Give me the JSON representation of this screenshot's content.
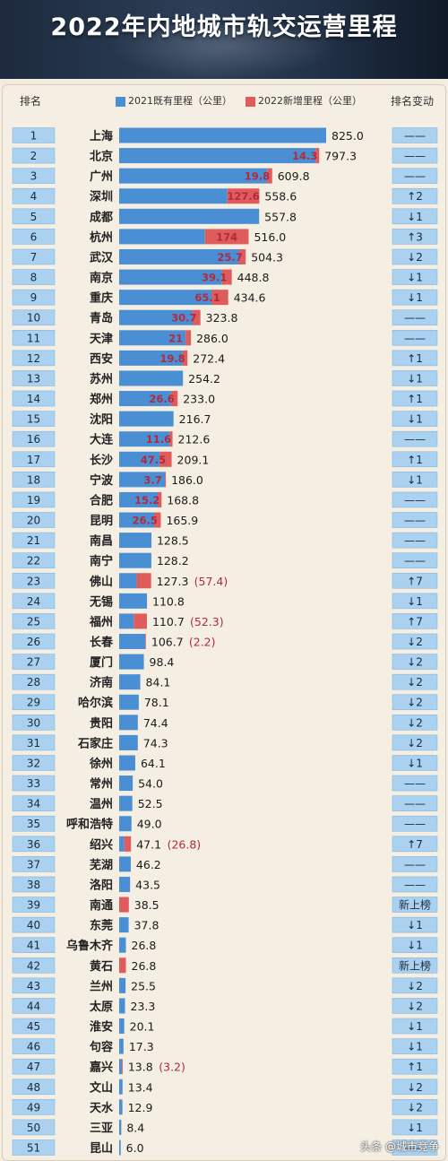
{
  "title": "2022年内地城市轨交运营里程",
  "headers": {
    "rank": "排名",
    "change": "排名变动"
  },
  "watermark": "头条 @城市竞争",
  "colors": {
    "base": "#4a8fd3",
    "added": "#e05b5b",
    "added_text": "#b42a3c",
    "badge": "#aad1ef",
    "accent": "#2f74c0"
  },
  "chart_data": {
    "type": "bar",
    "orientation": "horizontal",
    "stacked": true,
    "legend": [
      "2021既有里程（公里）",
      "2022新增里程（公里）"
    ],
    "legend_position": "top",
    "xlim": [
      0,
      825
    ],
    "rows": [
      {
        "rank": "1",
        "city": "上海",
        "base": 825.0,
        "added": 0,
        "added_label": "",
        "total": "825.0",
        "change": "——"
      },
      {
        "rank": "2",
        "city": "北京",
        "base": 783.0,
        "added": 14.3,
        "added_label": "14.3",
        "total": "797.3",
        "change": "——"
      },
      {
        "rank": "3",
        "city": "广州",
        "base": 590.0,
        "added": 19.8,
        "added_label": "19.8",
        "total": "609.8",
        "change": "——"
      },
      {
        "rank": "4",
        "city": "深圳",
        "base": 431.0,
        "added": 127.6,
        "added_label": "127.6",
        "total": "558.6",
        "change": "↑2"
      },
      {
        "rank": "5",
        "city": "成都",
        "base": 557.8,
        "added": 0,
        "added_label": "",
        "total": "557.8",
        "change": "↓1"
      },
      {
        "rank": "6",
        "city": "杭州",
        "base": 342.0,
        "added": 174,
        "added_label": "174",
        "total": "516.0",
        "change": "↑3"
      },
      {
        "rank": "7",
        "city": "武汉",
        "base": 478.6,
        "added": 25.7,
        "added_label": "25.7",
        "total": "504.3",
        "change": "↓2"
      },
      {
        "rank": "8",
        "city": "南京",
        "base": 409.7,
        "added": 39.1,
        "added_label": "39.1",
        "total": "448.8",
        "change": "↓1"
      },
      {
        "rank": "9",
        "city": "重庆",
        "base": 369.5,
        "added": 65.1,
        "added_label": "65.1",
        "total": "434.6",
        "change": "↓1"
      },
      {
        "rank": "10",
        "city": "青岛",
        "base": 293.1,
        "added": 30.7,
        "added_label": "30.7",
        "total": "323.8",
        "change": "——"
      },
      {
        "rank": "11",
        "city": "天津",
        "base": 265.0,
        "added": 21,
        "added_label": "21",
        "total": "286.0",
        "change": "——"
      },
      {
        "rank": "12",
        "city": "西安",
        "base": 252.6,
        "added": 19.8,
        "added_label": "19.8",
        "total": "272.4",
        "change": "↑1"
      },
      {
        "rank": "13",
        "city": "苏州",
        "base": 254.2,
        "added": 0,
        "added_label": "",
        "total": "254.2",
        "change": "↓1"
      },
      {
        "rank": "14",
        "city": "郑州",
        "base": 206.4,
        "added": 26.6,
        "added_label": "26.6",
        "total": "233.0",
        "change": "↑1"
      },
      {
        "rank": "15",
        "city": "沈阳",
        "base": 216.7,
        "added": 0,
        "added_label": "",
        "total": "216.7",
        "change": "↓1"
      },
      {
        "rank": "16",
        "city": "大连",
        "base": 201.0,
        "added": 11.6,
        "added_label": "11.6",
        "total": "212.6",
        "change": "——"
      },
      {
        "rank": "17",
        "city": "长沙",
        "base": 161.6,
        "added": 47.5,
        "added_label": "47.5",
        "total": "209.1",
        "change": "↑1"
      },
      {
        "rank": "18",
        "city": "宁波",
        "base": 182.3,
        "added": 3.7,
        "added_label": "3.7",
        "total": "186.0",
        "change": "↓1"
      },
      {
        "rank": "19",
        "city": "合肥",
        "base": 153.6,
        "added": 15.2,
        "added_label": "15.2",
        "total": "168.8",
        "change": "——"
      },
      {
        "rank": "20",
        "city": "昆明",
        "base": 139.4,
        "added": 26.5,
        "added_label": "26.5",
        "total": "165.9",
        "change": "——"
      },
      {
        "rank": "21",
        "city": "南昌",
        "base": 128.5,
        "added": 0,
        "added_label": "",
        "total": "128.5",
        "change": "——"
      },
      {
        "rank": "22",
        "city": "南宁",
        "base": 128.2,
        "added": 0,
        "added_label": "",
        "total": "128.2",
        "change": "——"
      },
      {
        "rank": "23",
        "city": "佛山",
        "base": 69.9,
        "added": 57.4,
        "added_label": "",
        "total": "127.3",
        "extra": "(57.4)",
        "change": "↑7"
      },
      {
        "rank": "24",
        "city": "无锡",
        "base": 110.8,
        "added": 0,
        "added_label": "",
        "total": "110.8",
        "change": "↓1"
      },
      {
        "rank": "25",
        "city": "福州",
        "base": 58.4,
        "added": 52.3,
        "added_label": "",
        "total": "110.7",
        "extra": "(52.3)",
        "change": "↑7"
      },
      {
        "rank": "26",
        "city": "长春",
        "base": 104.5,
        "added": 2.2,
        "added_label": "",
        "total": "106.7",
        "extra": "(2.2)",
        "change": "↓2"
      },
      {
        "rank": "27",
        "city": "厦门",
        "base": 98.4,
        "added": 0,
        "added_label": "",
        "total": "98.4",
        "change": "↓2"
      },
      {
        "rank": "28",
        "city": "济南",
        "base": 84.1,
        "added": 0,
        "added_label": "",
        "total": "84.1",
        "change": "↓2"
      },
      {
        "rank": "29",
        "city": "哈尔滨",
        "base": 78.1,
        "added": 0,
        "added_label": "",
        "total": "78.1",
        "change": "↓2"
      },
      {
        "rank": "30",
        "city": "贵阳",
        "base": 74.4,
        "added": 0,
        "added_label": "",
        "total": "74.4",
        "change": "↓2"
      },
      {
        "rank": "31",
        "city": "石家庄",
        "base": 74.3,
        "added": 0,
        "added_label": "",
        "total": "74.3",
        "change": "↓2"
      },
      {
        "rank": "32",
        "city": "徐州",
        "base": 64.1,
        "added": 0,
        "added_label": "",
        "total": "64.1",
        "change": "↓1"
      },
      {
        "rank": "33",
        "city": "常州",
        "base": 54.0,
        "added": 0,
        "added_label": "",
        "total": "54.0",
        "change": "——"
      },
      {
        "rank": "34",
        "city": "温州",
        "base": 52.5,
        "added": 0,
        "added_label": "",
        "total": "52.5",
        "change": "——"
      },
      {
        "rank": "35",
        "city": "呼和浩特",
        "base": 49.0,
        "added": 0,
        "added_label": "",
        "total": "49.0",
        "change": "——"
      },
      {
        "rank": "36",
        "city": "绍兴",
        "base": 20.3,
        "added": 26.8,
        "added_label": "",
        "total": "47.1",
        "extra": "(26.8)",
        "change": "↑7"
      },
      {
        "rank": "37",
        "city": "芜湖",
        "base": 46.2,
        "added": 0,
        "added_label": "",
        "total": "46.2",
        "change": "——"
      },
      {
        "rank": "38",
        "city": "洛阳",
        "base": 43.5,
        "added": 0,
        "added_label": "",
        "total": "43.5",
        "change": "——"
      },
      {
        "rank": "39",
        "city": "南通",
        "base": 0,
        "added": 38.5,
        "added_label": "",
        "total": "38.5",
        "change": "新上榜"
      },
      {
        "rank": "40",
        "city": "东莞",
        "base": 37.8,
        "added": 0,
        "added_label": "",
        "total": "37.8",
        "change": "↓1"
      },
      {
        "rank": "41",
        "city": "乌鲁木齐",
        "base": 26.8,
        "added": 0,
        "added_label": "",
        "total": "26.8",
        "change": "↓1"
      },
      {
        "rank": "42",
        "city": "黄石",
        "base": 0,
        "added": 26.8,
        "added_label": "",
        "total": "26.8",
        "change": "新上榜"
      },
      {
        "rank": "43",
        "city": "兰州",
        "base": 25.5,
        "added": 0,
        "added_label": "",
        "total": "25.5",
        "change": "↓2"
      },
      {
        "rank": "44",
        "city": "太原",
        "base": 23.3,
        "added": 0,
        "added_label": "",
        "total": "23.3",
        "change": "↓2"
      },
      {
        "rank": "45",
        "city": "淮安",
        "base": 20.1,
        "added": 0,
        "added_label": "",
        "total": "20.1",
        "change": "↓1"
      },
      {
        "rank": "46",
        "city": "句容",
        "base": 17.3,
        "added": 0,
        "added_label": "",
        "total": "17.3",
        "change": "↓1"
      },
      {
        "rank": "47",
        "city": "嘉兴",
        "base": 10.6,
        "added": 3.2,
        "added_label": "",
        "total": "13.8",
        "extra": "(3.2)",
        "change": "↑1"
      },
      {
        "rank": "48",
        "city": "文山",
        "base": 13.4,
        "added": 0,
        "added_label": "",
        "total": "13.4",
        "change": "↓2"
      },
      {
        "rank": "49",
        "city": "天水",
        "base": 12.9,
        "added": 0,
        "added_label": "",
        "total": "12.9",
        "change": "↓2"
      },
      {
        "rank": "50",
        "city": "三亚",
        "base": 8.4,
        "added": 0,
        "added_label": "",
        "total": "8.4",
        "change": "↓1"
      },
      {
        "rank": "51",
        "city": "昆山",
        "base": 6.0,
        "added": 0,
        "added_label": "",
        "total": "6.0",
        "change": "——"
      }
    ]
  }
}
